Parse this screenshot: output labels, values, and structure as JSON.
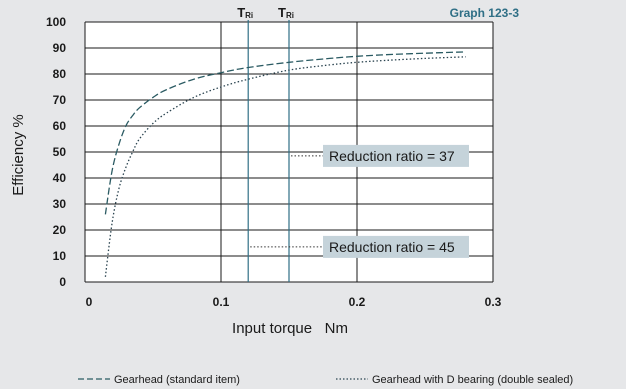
{
  "chart_data": {
    "type": "line",
    "graph_id": "Graph 123-3",
    "xlabel": "Input torque   Nm",
    "ylabel": "Efficiency %",
    "xlim": [
      0,
      0.3
    ],
    "ylim": [
      0,
      100
    ],
    "x_ticks": [
      "0",
      "0.1",
      "0.2",
      "0.3"
    ],
    "y_ticks": [
      "0",
      "10",
      "20",
      "30",
      "40",
      "50",
      "60",
      "70",
      "80",
      "90",
      "100"
    ],
    "grid": true,
    "tr_label": "T",
    "tr_sub": "Ri",
    "tr_x": [
      0.12,
      0.15
    ],
    "tr_color": "#2f6f86",
    "series": [
      {
        "name": "Gearhead (standard item)",
        "style": "dashed",
        "color": "#2b5b63",
        "x": [
          0.015,
          0.02,
          0.025,
          0.03,
          0.035,
          0.04,
          0.05,
          0.06,
          0.08,
          0.1,
          0.12,
          0.15,
          0.18,
          0.2,
          0.22,
          0.25,
          0.28
        ],
        "y": [
          26,
          43,
          53,
          60,
          64,
          67,
          71,
          74,
          78,
          80.5,
          82.5,
          84.5,
          86,
          86.8,
          87.4,
          88,
          88.5
        ]
      },
      {
        "name": "Gearhead with D bearing (double sealed)",
        "style": "dotted",
        "color": "#2b4450",
        "x": [
          0.015,
          0.02,
          0.025,
          0.03,
          0.035,
          0.04,
          0.05,
          0.06,
          0.08,
          0.1,
          0.12,
          0.15,
          0.18,
          0.2,
          0.22,
          0.25,
          0.28
        ],
        "y": [
          2,
          23,
          36,
          44,
          50,
          55,
          61,
          65,
          71,
          75,
          78,
          81.5,
          83.5,
          84.5,
          85.2,
          86,
          86.6
        ]
      }
    ],
    "annotations": [
      {
        "text": "Reduction ratio = 37",
        "line_from": [
          0.15,
          48.5
        ],
        "line_to": [
          0.175,
          48.5
        ]
      },
      {
        "text": "Reduction ratio = 45",
        "line_from": [
          0.12,
          13.5
        ],
        "line_to": [
          0.175,
          13.5
        ]
      }
    ]
  },
  "colors": {
    "background": "#e6e7e9",
    "plot_bg": "#ffffff",
    "grid": "#1a1a1a",
    "callout_bg": "#c5d3da"
  }
}
